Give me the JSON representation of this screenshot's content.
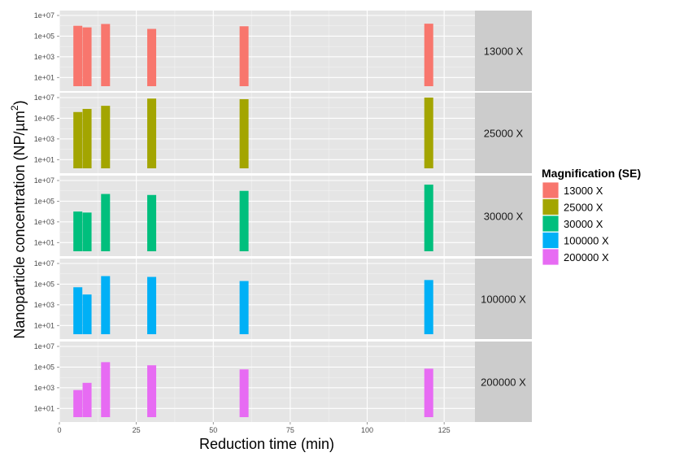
{
  "chart_data": {
    "type": "bar",
    "xlabel": "Reduction time (min)",
    "ylabel_main": "Nanoparticle concentration (NP/",
    "ylabel_unit": "µm",
    "ylabel_exp": "2",
    "ylabel_close": ")",
    "y_scale": "log10",
    "ylim": [
      1,
      10000000
    ],
    "xlim": [
      0,
      135
    ],
    "x_ticks": [
      {
        "value": 0,
        "label": "0"
      },
      {
        "value": 25,
        "label": "25"
      },
      {
        "value": 50,
        "label": "50"
      },
      {
        "value": 75,
        "label": "75"
      },
      {
        "value": 100,
        "label": "100"
      },
      {
        "value": 125,
        "label": "125"
      }
    ],
    "y_ticks": [
      {
        "value": 10,
        "label": "1e+01"
      },
      {
        "value": 1000,
        "label": "1e+03"
      },
      {
        "value": 100000,
        "label": "1e+05"
      },
      {
        "value": 10000000,
        "label": "1e+07"
      }
    ],
    "x": [
      6,
      9,
      15,
      30,
      60,
      120
    ],
    "legend_title": "Magnification (SE)",
    "legend_position": "right",
    "grid": true,
    "series": [
      {
        "name": "13000 X",
        "strip": "13000 X",
        "color": "#F8766D",
        "values": [
          1000000,
          700000,
          1500000,
          500000,
          900000,
          1600000
        ]
      },
      {
        "name": "25000 X",
        "strip": "25000 X",
        "color": "#A3A500",
        "values": [
          400000,
          800000,
          1600000,
          8000000,
          7000000,
          10000000
        ]
      },
      {
        "name": "30000 X",
        "strip": "30000 X",
        "color": "#00BF7D",
        "values": [
          10000,
          8000,
          500000,
          400000,
          1000000,
          4000000
        ]
      },
      {
        "name": "100000 X",
        "strip": "100000 X",
        "color": "#00B0F6",
        "values": [
          50000,
          10000,
          600000,
          500000,
          200000,
          250000
        ]
      },
      {
        "name": "200000 X",
        "strip": "200000 X",
        "color": "#E76BF3",
        "values": [
          600,
          3000,
          300000,
          150000,
          60000,
          70000
        ]
      }
    ]
  }
}
